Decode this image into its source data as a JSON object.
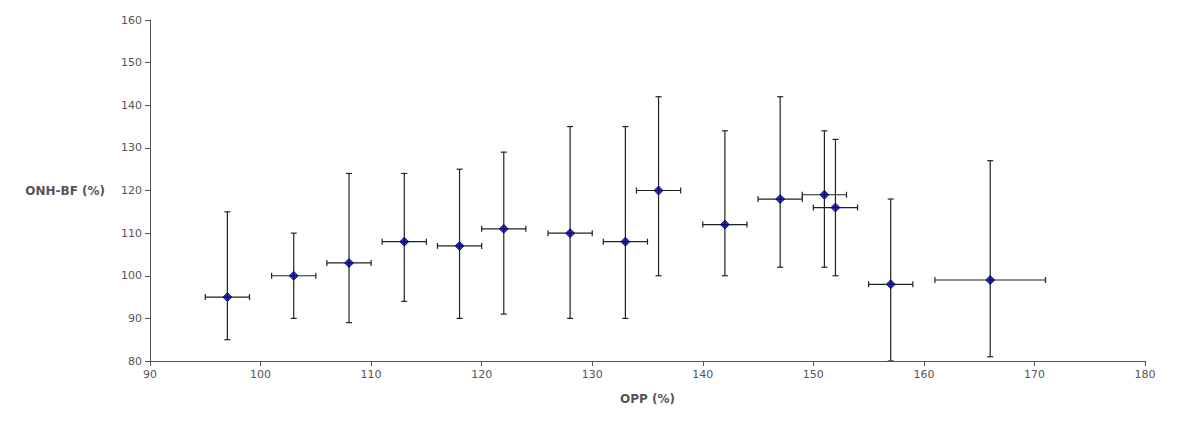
{
  "chart_data": {
    "type": "scatter",
    "xlabel": "OPP (%)",
    "ylabel": "ONH-BF (%)",
    "x": [
      97,
      103,
      108,
      113,
      118,
      122,
      128,
      133,
      136,
      142,
      147,
      151,
      152,
      157,
      166
    ],
    "values": [
      95,
      100,
      103,
      108,
      107,
      111,
      110,
      108,
      120,
      112,
      118,
      119,
      116,
      98,
      99
    ],
    "xerr": [
      2,
      2,
      2,
      2,
      2,
      2,
      2,
      2,
      2,
      2,
      2,
      2,
      2,
      2,
      5
    ],
    "yerr_lo": [
      10,
      10,
      14,
      14,
      17,
      20,
      20,
      18,
      20,
      12,
      16,
      17,
      16,
      18,
      18
    ],
    "yerr_hi": [
      20,
      10,
      21,
      16,
      18,
      18,
      25,
      27,
      22,
      22,
      24,
      15,
      16,
      20,
      28
    ],
    "xlim": [
      90,
      180
    ],
    "ylim": [
      80,
      160
    ],
    "xticks": [
      90,
      100,
      110,
      120,
      130,
      140,
      150,
      160,
      170,
      180
    ],
    "yticks": [
      80,
      90,
      100,
      110,
      120,
      130,
      140,
      150,
      160
    ],
    "color": "#00008B",
    "marker": "diamond",
    "grid": false
  }
}
